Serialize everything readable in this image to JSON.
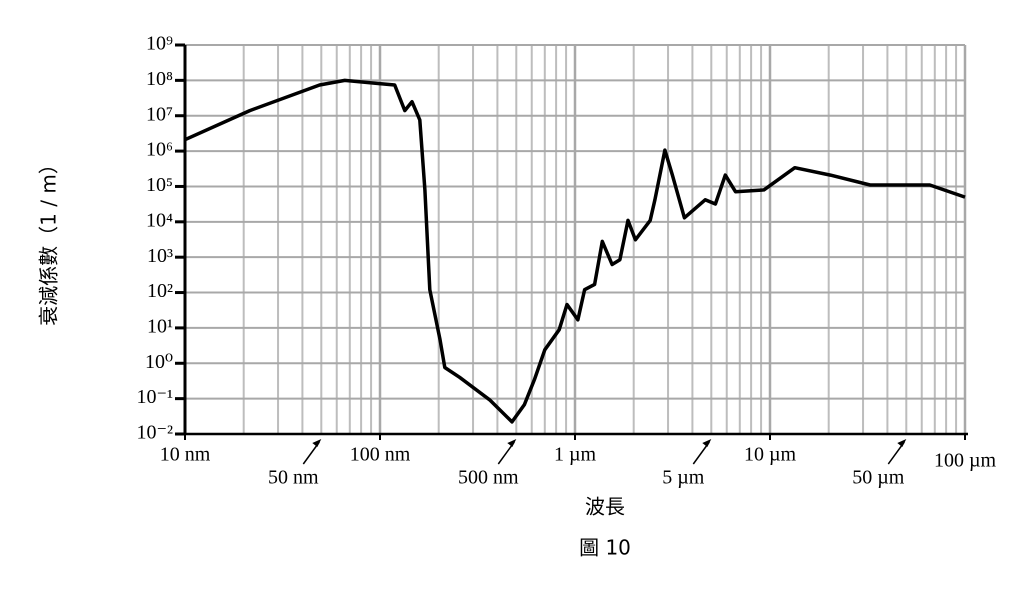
{
  "chart_data": {
    "type": "line",
    "x_label": "波長",
    "y_label": "衰減係數（1 / m）",
    "caption": "圖 10",
    "x_scale": "log",
    "y_scale": "log",
    "grid": true,
    "color": "#000000",
    "xlim": [
      10,
      100000
    ],
    "ylim": [
      0.01,
      1000000000
    ],
    "xticks": [
      {
        "value": 10,
        "label": "10 nm"
      },
      {
        "value": 100,
        "label": "100 nm"
      },
      {
        "value": 1000,
        "label": "1 µm"
      },
      {
        "value": 10000,
        "label": "10 µm"
      },
      {
        "value": 100000,
        "label": "100 µm"
      }
    ],
    "xminorticks": [
      20,
      30,
      40,
      50,
      60,
      70,
      80,
      90,
      200,
      300,
      400,
      500,
      600,
      700,
      800,
      900,
      2000,
      3000,
      4000,
      5000,
      6000,
      7000,
      8000,
      9000,
      20000,
      30000,
      40000,
      50000,
      60000,
      70000,
      80000,
      90000
    ],
    "x_annotations": [
      {
        "value": 50,
        "label": "50 nm"
      },
      {
        "value": 500,
        "label": "500 nm"
      },
      {
        "value": 5000,
        "label": "5 µm"
      },
      {
        "value": 50000,
        "label": "50 µm"
      }
    ],
    "yticks": [
      {
        "value": 0.01,
        "label": "10⁻²"
      },
      {
        "value": 0.1,
        "label": "10⁻¹"
      },
      {
        "value": 1,
        "label": "10⁰"
      },
      {
        "value": 10,
        "label": "10¹"
      },
      {
        "value": 100,
        "label": "10²"
      },
      {
        "value": 1000,
        "label": "10³"
      },
      {
        "value": 10000,
        "label": "10⁴"
      },
      {
        "value": 100000,
        "label": "10⁵"
      },
      {
        "value": 1000000,
        "label": "10⁶"
      },
      {
        "value": 10000000,
        "label": "10⁷"
      },
      {
        "value": 100000000,
        "label": "10⁸"
      },
      {
        "value": 1000000000,
        "label": "10⁹"
      }
    ],
    "x": [
      10,
      21.5,
      49,
      66,
      119,
      134,
      146,
      160,
      170,
      180,
      203,
      215,
      256,
      365,
      475,
      550,
      620,
      700,
      830,
      910,
      1035,
      1120,
      1260,
      1380,
      1550,
      1700,
      1870,
      2040,
      2430,
      2570,
      2890,
      3160,
      3640,
      4650,
      5250,
      5900,
      6650,
      9300,
      13400,
      20400,
      32600,
      66000,
      100000
    ],
    "values": [
      2100000,
      14000000,
      74000000,
      100000000,
      74000000,
      14000000,
      25000000,
      7600000,
      80000,
      120,
      4.7,
      0.76,
      0.4,
      0.093,
      0.022,
      0.068,
      0.35,
      2.4,
      8.9,
      46,
      17,
      120,
      170,
      2800,
      620,
      850,
      11000,
      3100,
      11000,
      42000,
      1070000,
      210000,
      13000,
      42000,
      32000,
      210000,
      71000,
      80000,
      340000,
      210000,
      110000,
      110000,
      50000
    ]
  }
}
